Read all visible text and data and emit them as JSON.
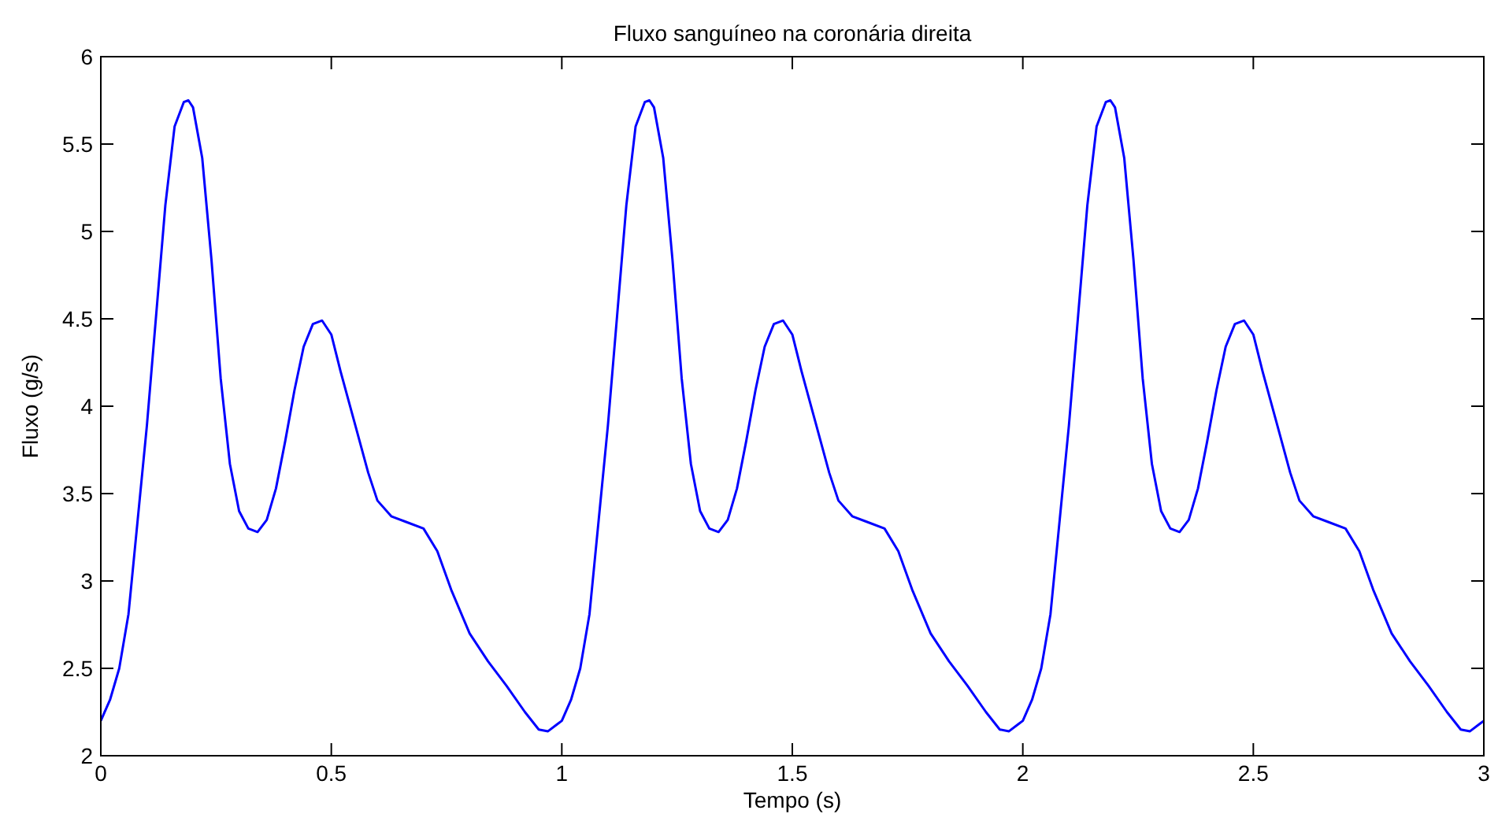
{
  "chart_data": {
    "type": "line",
    "title": "Fluxo sanguíneo na coronária direita",
    "xlabel": "Tempo (s)",
    "ylabel": "Fluxo (g/s)",
    "xlim": [
      0,
      3
    ],
    "ylim": [
      2,
      6
    ],
    "xticks": [
      0,
      0.5,
      1,
      1.5,
      2,
      2.5,
      3
    ],
    "yticks": [
      2,
      2.5,
      3,
      3.5,
      4,
      4.5,
      5,
      5.5,
      6
    ],
    "grid": false,
    "marker": "none",
    "line_style": "solid",
    "series": [
      {
        "color": "#0000ff",
        "x": [
          0,
          0.02,
          0.04,
          0.06,
          0.08,
          0.1,
          0.12,
          0.14,
          0.16,
          0.18,
          0.19,
          0.2,
          0.22,
          0.24,
          0.26,
          0.28,
          0.3,
          0.32,
          0.34,
          0.36,
          0.38,
          0.4,
          0.42,
          0.44,
          0.46,
          0.48,
          0.5,
          0.52,
          0.55,
          0.58,
          0.6,
          0.63,
          0.66,
          0.7,
          0.73,
          0.76,
          0.8,
          0.84,
          0.88,
          0.92,
          0.95,
          0.97,
          0.99,
          1,
          1.02,
          1.04,
          1.06,
          1.08,
          1.1,
          1.12,
          1.14,
          1.16,
          1.18,
          1.19,
          1.2,
          1.22,
          1.24,
          1.26,
          1.28,
          1.3,
          1.32,
          1.34,
          1.36,
          1.38,
          1.4,
          1.42,
          1.44,
          1.46,
          1.48,
          1.5,
          1.52,
          1.55,
          1.58,
          1.6,
          1.63,
          1.66,
          1.7,
          1.73,
          1.76,
          1.8,
          1.84,
          1.88,
          1.92,
          1.95,
          1.97,
          1.99,
          2,
          2.02,
          2.04,
          2.06,
          2.08,
          2.1,
          2.12,
          2.14,
          2.16,
          2.18,
          2.19,
          2.2,
          2.22,
          2.24,
          2.26,
          2.28,
          2.3,
          2.32,
          2.34,
          2.36,
          2.38,
          2.4,
          2.42,
          2.44,
          2.46,
          2.48,
          2.5,
          2.52,
          2.55,
          2.58,
          2.6,
          2.63,
          2.66,
          2.7,
          2.73,
          2.76,
          2.8,
          2.84,
          2.88,
          2.92,
          2.95,
          2.97,
          2.99,
          3
        ],
        "values": [
          2.2,
          2.32,
          2.5,
          2.81,
          3.35,
          3.89,
          4.52,
          5.15,
          5.6,
          5.74,
          5.75,
          5.71,
          5.42,
          4.84,
          4.16,
          3.67,
          3.4,
          3.3,
          3.28,
          3.35,
          3.53,
          3.8,
          4.09,
          4.34,
          4.47,
          4.49,
          4.41,
          4.2,
          3.91,
          3.62,
          3.46,
          3.37,
          3.34,
          3.3,
          3.17,
          2.95,
          2.7,
          2.54,
          2.4,
          2.25,
          2.15,
          2.14,
          2.18,
          2.2,
          2.32,
          2.5,
          2.81,
          3.35,
          3.89,
          4.52,
          5.15,
          5.6,
          5.74,
          5.75,
          5.71,
          5.42,
          4.84,
          4.16,
          3.67,
          3.4,
          3.3,
          3.28,
          3.35,
          3.53,
          3.8,
          4.09,
          4.34,
          4.47,
          4.49,
          4.41,
          4.2,
          3.91,
          3.62,
          3.46,
          3.37,
          3.34,
          3.3,
          3.17,
          2.95,
          2.7,
          2.54,
          2.4,
          2.25,
          2.15,
          2.14,
          2.18,
          2.2,
          2.32,
          2.5,
          2.81,
          3.35,
          3.89,
          4.52,
          5.15,
          5.6,
          5.74,
          5.75,
          5.71,
          5.42,
          4.84,
          4.16,
          3.67,
          3.4,
          3.3,
          3.28,
          3.35,
          3.53,
          3.8,
          4.09,
          4.34,
          4.47,
          4.49,
          4.41,
          4.2,
          3.91,
          3.62,
          3.46,
          3.37,
          3.34,
          3.3,
          3.17,
          2.95,
          2.7,
          2.54,
          2.4,
          2.25,
          2.15,
          2.14,
          2.18,
          2.2
        ]
      }
    ]
  }
}
